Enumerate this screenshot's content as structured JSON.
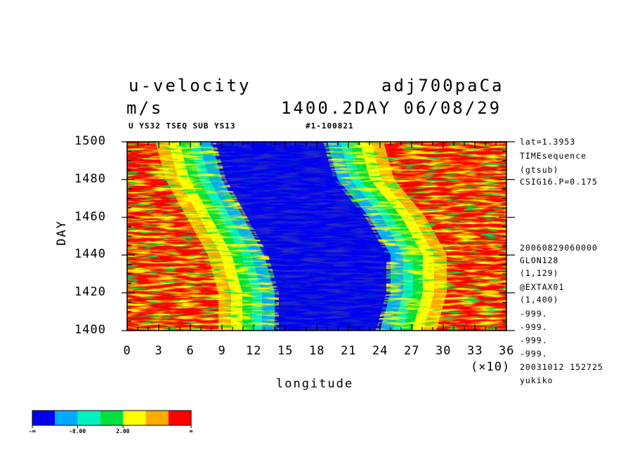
{
  "header": {
    "title_left": "u-velocity",
    "title_right": "adj700paCa",
    "units": "m/s",
    "day_date": "1400.2DAY 06/08/29",
    "sub_left": "U YS32 TSEQ SUB YS13",
    "sub_right": "#1-100821"
  },
  "meta_right": [
    "lat=1.3953",
    "TIMEsequence",
    "(gtsub)",
    "CSIG16.P=0.175",
    "20060829060000",
    "GLON128",
    "(1,129)",
    "@EXTAX01",
    "(1,400)",
    "-999.",
    "-999.",
    "-999.",
    "-999.",
    "20031012 152725",
    "yukiko"
  ],
  "colors": [
    "#0000ee",
    "#00aaff",
    "#00f0c0",
    "#00e040",
    "#ffff00",
    "#ffaa00",
    "#ff0000"
  ],
  "legend": {
    "labels": [
      "-∞",
      "-8.00",
      "2.00",
      "∞"
    ]
  },
  "chart_data": {
    "type": "heatmap",
    "title": "u-velocity",
    "xlabel": "longitude",
    "ylabel": "DAY",
    "x_multiplier": "(×10)",
    "xlim": [
      0,
      36
    ],
    "ylim": [
      1400,
      1500
    ],
    "x_ticks": [
      0,
      3,
      6,
      9,
      12,
      15,
      18,
      21,
      24,
      27,
      30,
      33,
      36
    ],
    "y_ticks": [
      1400,
      1420,
      1440,
      1460,
      1480,
      1500
    ],
    "colorbar_levels": [
      "-∞",
      "-8.00",
      "2.00",
      "∞"
    ],
    "easterly_band": [
      {
        "day": 1400,
        "lon": [
          14,
          24
        ]
      },
      {
        "day": 1420,
        "lon": [
          14,
          25
        ]
      },
      {
        "day": 1440,
        "lon": [
          13,
          25
        ]
      },
      {
        "day": 1460,
        "lon": [
          11,
          23
        ]
      },
      {
        "day": 1480,
        "lon": [
          9,
          20
        ]
      },
      {
        "day": 1500,
        "lon": [
          8,
          19
        ]
      }
    ]
  }
}
